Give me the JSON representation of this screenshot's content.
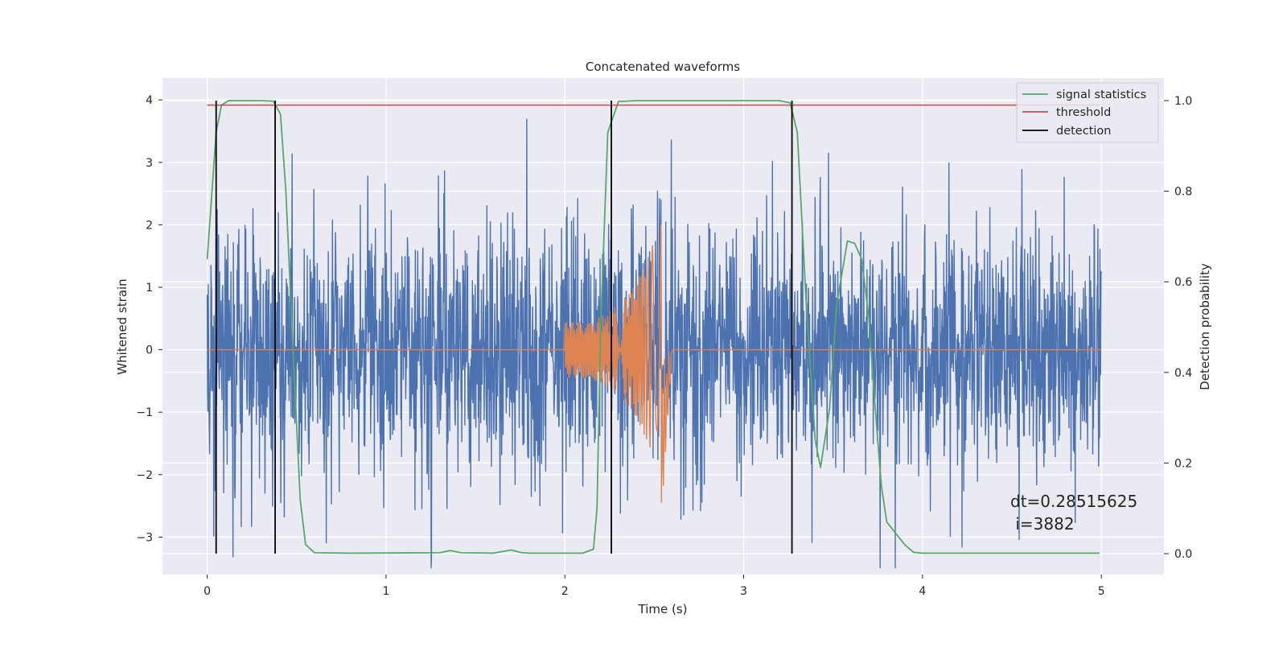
{
  "chart_data": {
    "type": "line",
    "title": "Concatenated waveforms",
    "xlabel": "Time (s)",
    "ylabel_left": "Whitened strain",
    "ylabel_right": "Detection probability",
    "xlim": [
      -0.25,
      5.35
    ],
    "ylim_left": [
      -3.6,
      4.35
    ],
    "ylim_right": [
      0,
      1
    ],
    "x_ticks": [
      0,
      1,
      2,
      3,
      4,
      5
    ],
    "x_tick_labels": [
      "0",
      "1",
      "2",
      "3",
      "4",
      "5"
    ],
    "y_left_ticks": [
      -3,
      -2,
      -1,
      0,
      1,
      2,
      3,
      4
    ],
    "y_left_tick_labels": [
      "−3",
      "−2",
      "−1",
      "0",
      "1",
      "2",
      "3",
      "4"
    ],
    "y_right_ticks": [
      0,
      0.2,
      0.4,
      0.6,
      0.8,
      1.0
    ],
    "y_right_tick_labels": [
      "0.0",
      "0.2",
      "0.4",
      "0.6",
      "0.8",
      "1.0"
    ],
    "grid": true,
    "legend_position": "top-right",
    "legend": [
      {
        "label": "signal statistics",
        "color": "#55a868"
      },
      {
        "label": "threshold",
        "color": "#c44e52"
      },
      {
        "label": "detection",
        "color": "#000000"
      }
    ],
    "colors": {
      "strain": "#4c72b0",
      "template": "#dd8452",
      "signal_statistics": "#55a868",
      "threshold": "#c44e52",
      "detection": "#000000",
      "axes_background": "#eaeaf2",
      "grid": "#ffffff"
    },
    "series": [
      {
        "axis": "left",
        "description_color": "strain",
        "x_range": [
          0,
          5
        ],
        "envelope": {
          "typical_abs": 1.3,
          "peak_max": 3.8,
          "peak_min": -3.5
        }
      },
      {
        "axis": "left",
        "description_color": "template",
        "x_range": [
          2.0,
          2.55
        ],
        "amplitude_start": 0.45,
        "amplitude_end": 2.1,
        "merger_time": 2.54
      },
      {
        "name": "signal statistics",
        "axis": "right",
        "x": [
          0,
          0.02,
          0.05,
          0.08,
          0.12,
          0.3,
          0.37,
          0.41,
          0.44,
          0.48,
          0.52,
          0.55,
          0.6,
          0.8,
          1.3,
          1.36,
          1.42,
          1.6,
          1.7,
          1.76,
          1.8,
          2.0,
          2.1,
          2.16,
          2.18,
          2.2,
          2.24,
          2.3,
          2.4,
          3.2,
          3.26,
          3.3,
          3.35,
          3.4,
          3.43,
          3.48,
          3.52,
          3.58,
          3.62,
          3.66,
          3.7,
          3.73,
          3.77,
          3.8,
          3.85,
          3.9,
          3.95,
          4.0,
          4.5,
          4.99
        ],
        "y": [
          0.65,
          0.76,
          0.93,
          0.99,
          1.0,
          1.0,
          0.999,
          0.97,
          0.8,
          0.45,
          0.12,
          0.02,
          0.002,
          0.001,
          0.002,
          0.007,
          0.002,
          0.001,
          0.008,
          0.002,
          0.001,
          0.001,
          0.001,
          0.01,
          0.1,
          0.5,
          0.93,
          0.998,
          1.0,
          1.0,
          0.995,
          0.93,
          0.55,
          0.25,
          0.19,
          0.32,
          0.55,
          0.69,
          0.685,
          0.65,
          0.52,
          0.35,
          0.15,
          0.07,
          0.045,
          0.02,
          0.003,
          0.001,
          0.001,
          0.001
        ]
      },
      {
        "name": "threshold",
        "axis": "right",
        "x": [
          0,
          4.99
        ],
        "y": [
          0.99,
          0.99
        ]
      }
    ],
    "detections": [
      0.05,
      0.38,
      2.26,
      3.27
    ],
    "annotation": {
      "line1": "dt=0.28515625",
      "line2": " i=3882"
    }
  }
}
